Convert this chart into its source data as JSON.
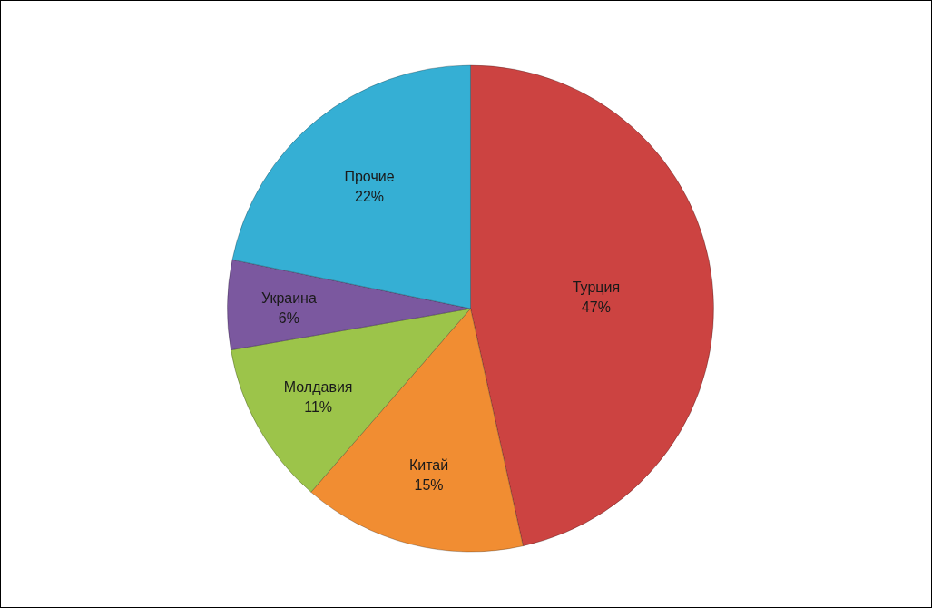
{
  "chart_data": {
    "type": "pie",
    "categories": [
      "Турция",
      "Китай",
      "Молдавия",
      "Украина",
      "Прочие"
    ],
    "values": [
      47,
      15,
      11,
      6,
      22
    ],
    "colors": [
      "#cc4341",
      "#f18d32",
      "#9cc44a",
      "#7b589f",
      "#35afd4"
    ],
    "value_labels": [
      "47%",
      "15%",
      "11%",
      "6%",
      "22%"
    ]
  }
}
